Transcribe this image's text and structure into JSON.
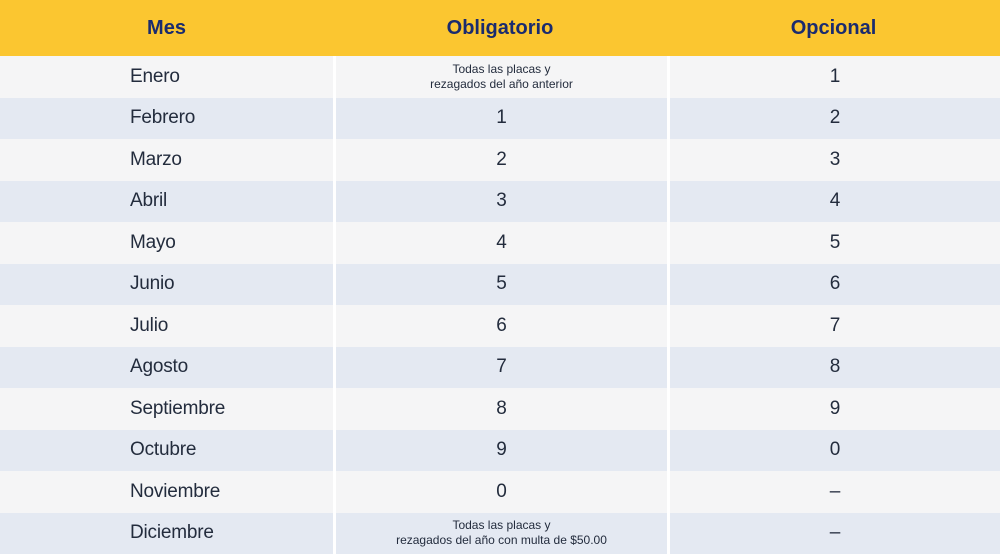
{
  "theme": {
    "header_bg": "#FBC630",
    "header_text": "#1A2B6E",
    "row_light": "#F5F5F6",
    "row_alt": "#E4E9F2",
    "body_text": "#232C3D",
    "separator": "#FFFFFF"
  },
  "chart_data": {
    "type": "table",
    "columns": [
      "Mes",
      "Obligatorio",
      "Opcional"
    ],
    "rows": [
      [
        "Enero",
        "Todas las placas y\nrezagados del año anterior",
        "1"
      ],
      [
        "Febrero",
        "1",
        "2"
      ],
      [
        "Marzo",
        "2",
        "3"
      ],
      [
        "Abril",
        "3",
        "4"
      ],
      [
        "Mayo",
        "4",
        "5"
      ],
      [
        "Junio",
        "5",
        "6"
      ],
      [
        "Julio",
        "6",
        "7"
      ],
      [
        "Agosto",
        "7",
        "8"
      ],
      [
        "Septiembre",
        "8",
        "9"
      ],
      [
        "Octubre",
        "9",
        "0"
      ],
      [
        "Noviembre",
        "0",
        "–"
      ],
      [
        "Diciembre",
        "Todas las placas y\nrezagados del año con multa de $50.00",
        "–"
      ]
    ]
  }
}
